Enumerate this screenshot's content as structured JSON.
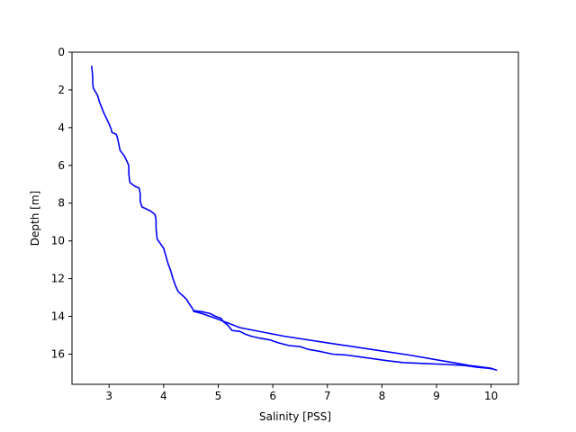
{
  "chart_data": {
    "type": "line",
    "xlabel": "Salinity [PSS]",
    "ylabel": "Depth [m]",
    "xlim": [
      2.32,
      10.5
    ],
    "ylim": [
      17.6,
      0
    ],
    "y_inverted": true,
    "x_ticks": [
      3,
      4,
      5,
      6,
      7,
      8,
      9,
      10
    ],
    "y_ticks": [
      0,
      2,
      4,
      6,
      8,
      10,
      12,
      14,
      16
    ],
    "grid": false,
    "series": [
      {
        "color": "#0000ff",
        "points": [
          [
            2.68,
            0.75
          ],
          [
            2.69,
            1.0
          ],
          [
            2.7,
            1.3
          ],
          [
            2.7,
            1.6
          ],
          [
            2.71,
            1.9
          ],
          [
            2.75,
            2.1
          ],
          [
            2.79,
            2.3
          ],
          [
            2.82,
            2.6
          ],
          [
            2.86,
            2.9
          ],
          [
            2.9,
            3.2
          ],
          [
            2.95,
            3.5
          ],
          [
            3.0,
            3.8
          ],
          [
            3.04,
            4.1
          ],
          [
            3.05,
            4.25
          ],
          [
            3.13,
            4.35
          ],
          [
            3.15,
            4.5
          ],
          [
            3.18,
            4.9
          ],
          [
            3.2,
            5.2
          ],
          [
            3.28,
            5.5
          ],
          [
            3.33,
            5.8
          ],
          [
            3.36,
            6.0
          ],
          [
            3.36,
            6.4
          ],
          [
            3.37,
            6.7
          ],
          [
            3.38,
            6.9
          ],
          [
            3.47,
            7.1
          ],
          [
            3.55,
            7.2
          ],
          [
            3.57,
            7.5
          ],
          [
            3.57,
            7.9
          ],
          [
            3.6,
            8.2
          ],
          [
            3.75,
            8.4
          ],
          [
            3.84,
            8.6
          ],
          [
            3.86,
            8.9
          ],
          [
            3.86,
            9.3
          ],
          [
            3.87,
            9.6
          ],
          [
            3.88,
            9.9
          ],
          [
            3.93,
            10.1
          ],
          [
            4.0,
            10.4
          ],
          [
            4.04,
            10.8
          ],
          [
            4.08,
            11.2
          ],
          [
            4.13,
            11.6
          ],
          [
            4.17,
            12.0
          ],
          [
            4.22,
            12.4
          ],
          [
            4.27,
            12.7
          ],
          [
            4.35,
            12.9
          ],
          [
            4.42,
            13.1
          ],
          [
            4.46,
            13.3
          ],
          [
            4.52,
            13.55
          ],
          [
            4.55,
            13.7
          ],
          [
            4.7,
            13.75
          ],
          [
            4.85,
            13.85
          ],
          [
            4.95,
            14.0
          ],
          [
            5.05,
            14.1
          ],
          [
            5.1,
            14.3
          ],
          [
            5.15,
            14.4
          ],
          [
            5.2,
            14.55
          ],
          [
            5.25,
            14.75
          ],
          [
            5.4,
            14.8
          ],
          [
            5.5,
            14.95
          ],
          [
            5.6,
            15.05
          ],
          [
            5.75,
            15.15
          ],
          [
            5.95,
            15.25
          ],
          [
            6.1,
            15.4
          ],
          [
            6.3,
            15.55
          ],
          [
            6.5,
            15.6
          ],
          [
            6.65,
            15.75
          ],
          [
            6.85,
            15.85
          ],
          [
            7.1,
            16.0
          ],
          [
            7.35,
            16.05
          ],
          [
            7.6,
            16.15
          ],
          [
            7.85,
            16.25
          ],
          [
            8.1,
            16.35
          ],
          [
            8.4,
            16.45
          ],
          [
            8.8,
            16.5
          ],
          [
            9.2,
            16.55
          ],
          [
            9.5,
            16.6
          ],
          [
            9.75,
            16.7
          ],
          [
            9.95,
            16.75
          ],
          [
            10.05,
            16.8
          ],
          [
            10.1,
            16.85
          ],
          [
            10.0,
            16.75
          ],
          [
            9.6,
            16.6
          ],
          [
            9.1,
            16.35
          ],
          [
            8.5,
            16.05
          ],
          [
            7.8,
            15.75
          ],
          [
            7.0,
            15.4
          ],
          [
            6.2,
            15.05
          ],
          [
            5.4,
            14.6
          ],
          [
            4.95,
            14.1
          ],
          [
            4.7,
            13.85
          ],
          [
            4.58,
            13.75
          ],
          [
            4.55,
            13.75
          ]
        ]
      }
    ]
  }
}
